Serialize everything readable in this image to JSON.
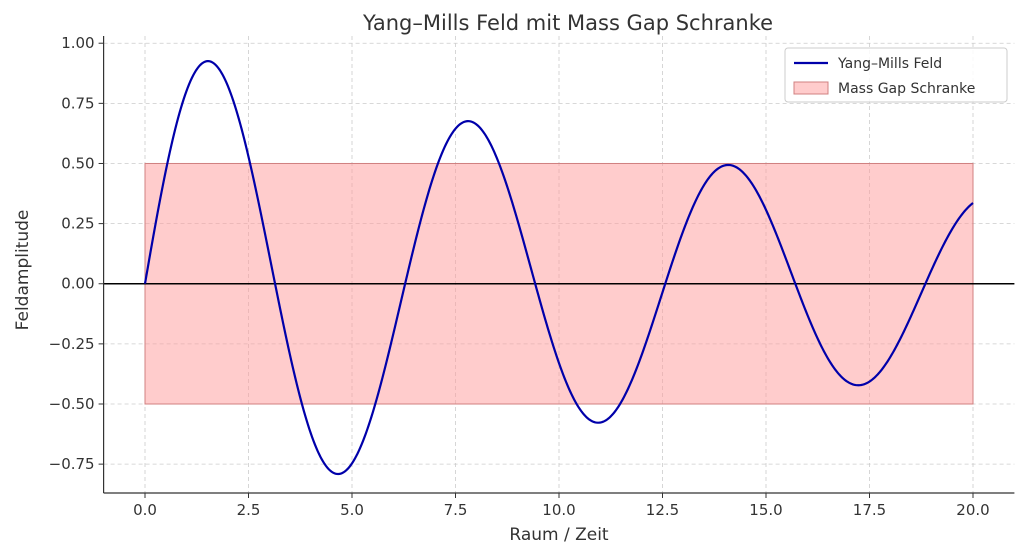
{
  "chart_data": {
    "type": "line",
    "title": "Yang–Mills Feld mit Mass Gap Schranke",
    "xlabel": "Raum / Zeit",
    "ylabel": "Feldamplitude",
    "xlim": [
      -1,
      21
    ],
    "ylim": [
      -0.87,
      1.03
    ],
    "xticks": [
      0,
      2.5,
      5,
      7.5,
      10,
      12.5,
      15,
      17.5,
      20
    ],
    "xtick_labels": [
      "0.0",
      "2.5",
      "5.0",
      "7.5",
      "10.0",
      "12.5",
      "15.0",
      "17.5",
      "20.0"
    ],
    "yticks": [
      1,
      0.75,
      0.5,
      0.25,
      0,
      -0.25,
      -0.5,
      -0.75
    ],
    "ytick_labels": [
      "1.00",
      "0.75",
      "0.50",
      "0.25",
      "0.00",
      "−0.25",
      "−0.50",
      "−0.75"
    ],
    "grid": true,
    "legend_position": "top-right",
    "series": [
      {
        "name": "Yang–Mills Feld",
        "color": "#0000aa",
        "function": "sin(x)·exp(-0.05x)",
        "x_range": [
          0,
          20
        ],
        "key_points": [
          [
            0,
            0
          ],
          [
            1.57,
            0.925
          ],
          [
            4.71,
            -0.79
          ],
          [
            7.85,
            0.675
          ],
          [
            11.0,
            -0.577
          ],
          [
            14.1,
            0.494
          ],
          [
            17.3,
            -0.42
          ],
          [
            20,
            0.336
          ]
        ]
      }
    ],
    "band": {
      "name": "Mass Gap Schranke",
      "x_range": [
        0,
        20
      ],
      "y_range": [
        -0.5,
        0.5
      ],
      "color": "#ff9999"
    },
    "hline": {
      "y": 0,
      "color": "#000000"
    }
  }
}
